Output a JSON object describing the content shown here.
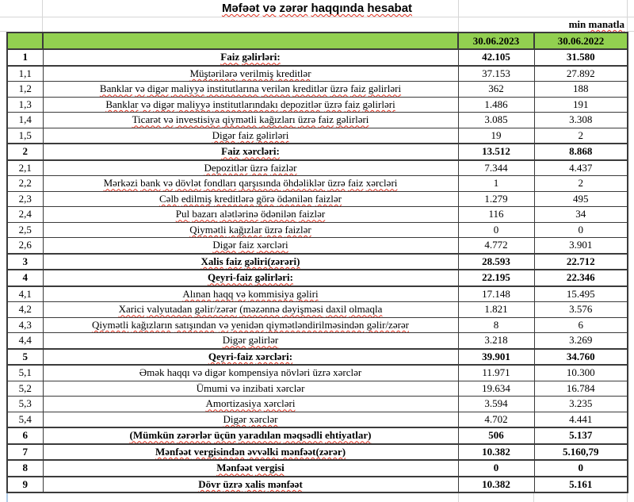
{
  "title": "Məfəət və zərər haqqında hesabat",
  "unit_note": {
    "word1": "min",
    "word2": "manatla"
  },
  "columns": [
    "30.06.2023",
    "30.06.2022"
  ],
  "colors": {
    "header_green": "#92d050",
    "border_dark": "#3b3b3b",
    "squiggle_red": "#e0301e",
    "gridline_gray": "#d6d6d6"
  },
  "rows": [
    {
      "no": "1",
      "label": "Faiz gəlirləri:",
      "y2023": "42.105",
      "y2022": "31.580",
      "bold": true,
      "misspelled": true
    },
    {
      "no": "1,1",
      "label": "Müştərilərə verilmiş kreditlər",
      "y2023": "37.153",
      "y2022": "27.892",
      "bold": false,
      "misspelled": true
    },
    {
      "no": "1,2",
      "label": "Banklar və digər maliyyə institutlarına verilən kreditlər üzrə faiz gəlirləri",
      "y2023": "362",
      "y2022": "188",
      "bold": false,
      "misspelled": true
    },
    {
      "no": "1,3",
      "label": "Banklar və digər maliyyə institutlarındakı depozitlər üzrə faiz gəlirləri",
      "y2023": "1.486",
      "y2022": "191",
      "bold": false,
      "misspelled": true
    },
    {
      "no": "1,4",
      "label": "Ticarət və investisiya qiymətli kağızları üzrə faiz gəlirləri",
      "y2023": "3.085",
      "y2022": "3.308",
      "bold": false,
      "misspelled": true
    },
    {
      "no": "1,5",
      "label": "Digər faiz gəlirləri",
      "y2023": "19",
      "y2022": "2",
      "bold": false,
      "misspelled": true
    },
    {
      "no": "2",
      "label": "Faiz xərcləri:",
      "y2023": "13.512",
      "y2022": "8.868",
      "bold": true,
      "misspelled": true
    },
    {
      "no": "2,1",
      "label": "Depozitlər üzrə faizlər",
      "y2023": "7.344",
      "y2022": "4.437",
      "bold": false,
      "misspelled": true
    },
    {
      "no": "2,2",
      "label": "Mərkəzi bank və dövlət fondları qarşısında öhdəliklər üzrə faiz xərcləri",
      "y2023": "1",
      "y2022": "2",
      "bold": false,
      "misspelled": true
    },
    {
      "no": "2,3",
      "label": "Cəlb edilmiş kreditlərə görə ödənilən faizlər",
      "y2023": "1.279",
      "y2022": "495",
      "bold": false,
      "misspelled": true
    },
    {
      "no": "2,4",
      "label": "Pul bazarı alətlərinə ödənilən faizlər",
      "y2023": "116",
      "y2022": "34",
      "bold": false,
      "misspelled": true
    },
    {
      "no": "2,5",
      "label": "Qiymətli kağızlar üzrə faizlər",
      "y2023": "0",
      "y2022": "0",
      "bold": false,
      "misspelled": true
    },
    {
      "no": "2,6",
      "label": "Digər faiz xərcləri",
      "y2023": "4.772",
      "y2022": "3.901",
      "bold": false,
      "misspelled": true
    },
    {
      "no": "3",
      "label": "Xalis faiz gəliri(zərəri)",
      "y2023": "28.593",
      "y2022": "22.712",
      "bold": true,
      "misspelled": true
    },
    {
      "no": "4",
      "label": "Qeyri-faiz gəlirləri:",
      "y2023": "22.195",
      "y2022": "22.346",
      "bold": true,
      "misspelled": true
    },
    {
      "no": "4,1",
      "label": "Alınan haqq və kommisiya gəliri",
      "y2023": "17.148",
      "y2022": "15.495",
      "bold": false,
      "misspelled": true
    },
    {
      "no": "4,2",
      "label": "Xarici valyutadan gəlir/zərər (məzənnə dəyişməsi daxil olmaqla",
      "y2023": "1.821",
      "y2022": "3.576",
      "bold": false,
      "misspelled": true
    },
    {
      "no": "4,3",
      "label": "Qiymətli kağızların satışından və yenidən qiymətləndirilməsindən gəlir/zərər",
      "y2023": "8",
      "y2022": "6",
      "bold": false,
      "misspelled": true
    },
    {
      "no": "4,4",
      "label": "Digər gəlirlər",
      "y2023": "3.218",
      "y2022": "3.269",
      "bold": false,
      "misspelled": true
    },
    {
      "no": "5",
      "label": "Qeyri-faiz xərcləri:",
      "y2023": "39.901",
      "y2022": "34.760",
      "bold": true,
      "misspelled": true
    },
    {
      "no": "5,1",
      "label": "Əmək haqqı və digər kompensiya növləri üzrə xərclər",
      "y2023": "11.971",
      "y2022": "10.300",
      "bold": false,
      "misspelled": false
    },
    {
      "no": "5,2",
      "label": "Ümumi və inzibati xərclər",
      "y2023": "19.634",
      "y2022": "16.784",
      "bold": false,
      "misspelled": false
    },
    {
      "no": "5,3",
      "label": "Amortizasiya xərcləri",
      "y2023": "3.594",
      "y2022": "3.235",
      "bold": false,
      "misspelled": true
    },
    {
      "no": "5,4",
      "label": "Digər xərclər",
      "y2023": "4.702",
      "y2022": "4.441",
      "bold": false,
      "misspelled": true
    },
    {
      "no": "6",
      "label": "(Mümkün zərərlər üçün yaradılan məqsədli ehtiyatlar)",
      "y2023": "506",
      "y2022": "5.137",
      "bold": true,
      "misspelled": true
    },
    {
      "no": "7",
      "label": "Mənfəət vergisindən əvvəlki mənfəət(zərər)",
      "y2023": "10.382",
      "y2022": "5.160,79",
      "bold": true,
      "misspelled": true
    },
    {
      "no": "8",
      "label": "Mənfəət vergisi",
      "y2023": "0",
      "y2022": "0",
      "bold": true,
      "misspelled": true
    },
    {
      "no": "9",
      "label": "Dövr üzrə xalis mənfəət",
      "y2023": "10.382",
      "y2022": "5.161",
      "bold": true,
      "misspelled": true
    }
  ]
}
